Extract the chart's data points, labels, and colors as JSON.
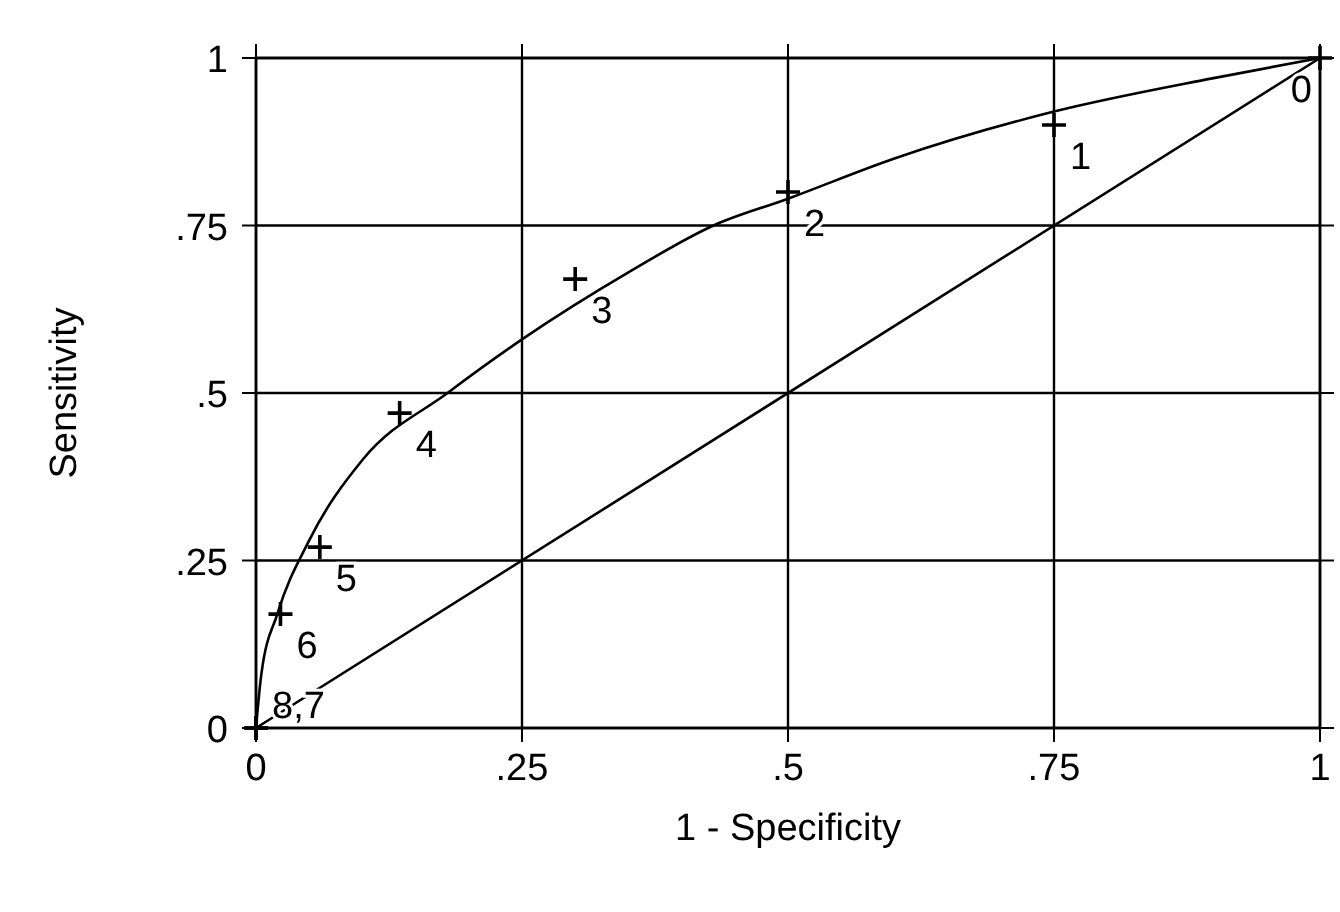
{
  "chart_data": {
    "type": "scatter",
    "xlabel": "1 - Specificity",
    "ylabel": "Sensitivity",
    "xlim": [
      0,
      1
    ],
    "ylim": [
      0,
      1
    ],
    "xticks": [
      0,
      {
        "value": 0.25,
        "label": ".25"
      },
      {
        "value": 0.5,
        "label": ".5"
      },
      {
        "value": 0.75,
        "label": ".75"
      },
      1
    ],
    "yticks": [
      0,
      {
        "value": 0.25,
        "label": ".25"
      },
      {
        "value": 0.5,
        "label": ".5"
      },
      {
        "value": 0.75,
        "label": ".75"
      },
      1
    ],
    "grid": true,
    "marker": "cross",
    "series": [
      {
        "color": "#000000",
        "x": [
          1,
          0.75,
          0.5,
          0.3,
          0.135,
          0.06,
          0.023,
          0,
          0
        ],
        "values": [
          1,
          0.9,
          0.8,
          0.67,
          0.47,
          0.27,
          0.17,
          0,
          0
        ]
      },
      {
        "type": "line",
        "color": "#000000",
        "marker": "none",
        "x": [
          0,
          0.005,
          0.02,
          0.05,
          0.1,
          0.18,
          0.25,
          0.35,
          0.43,
          0.5,
          0.6,
          0.75,
          0.9,
          1
        ],
        "values": [
          0,
          0.08,
          0.17,
          0.28,
          0.4,
          0.5,
          0.58,
          0.68,
          0.75,
          0.79,
          0.85,
          0.92,
          0.97,
          1
        ]
      },
      {
        "type": "line",
        "color": "#000000",
        "marker": "none",
        "x": [
          0,
          1
        ],
        "values": [
          0,
          1
        ]
      }
    ],
    "annotations": [
      {
        "text": "0",
        "x": 1,
        "y": 1
      },
      {
        "text": "1",
        "x": 0.75,
        "y": 0.9
      },
      {
        "text": "2",
        "x": 0.5,
        "y": 0.8
      },
      {
        "text": "3",
        "x": 0.3,
        "y": 0.67
      },
      {
        "text": "4",
        "x": 0.135,
        "y": 0.47
      },
      {
        "text": "5",
        "x": 0.06,
        "y": 0.27
      },
      {
        "text": "6",
        "x": 0.023,
        "y": 0.17
      },
      {
        "text": "8,7",
        "x": 0,
        "y": 0
      }
    ]
  }
}
